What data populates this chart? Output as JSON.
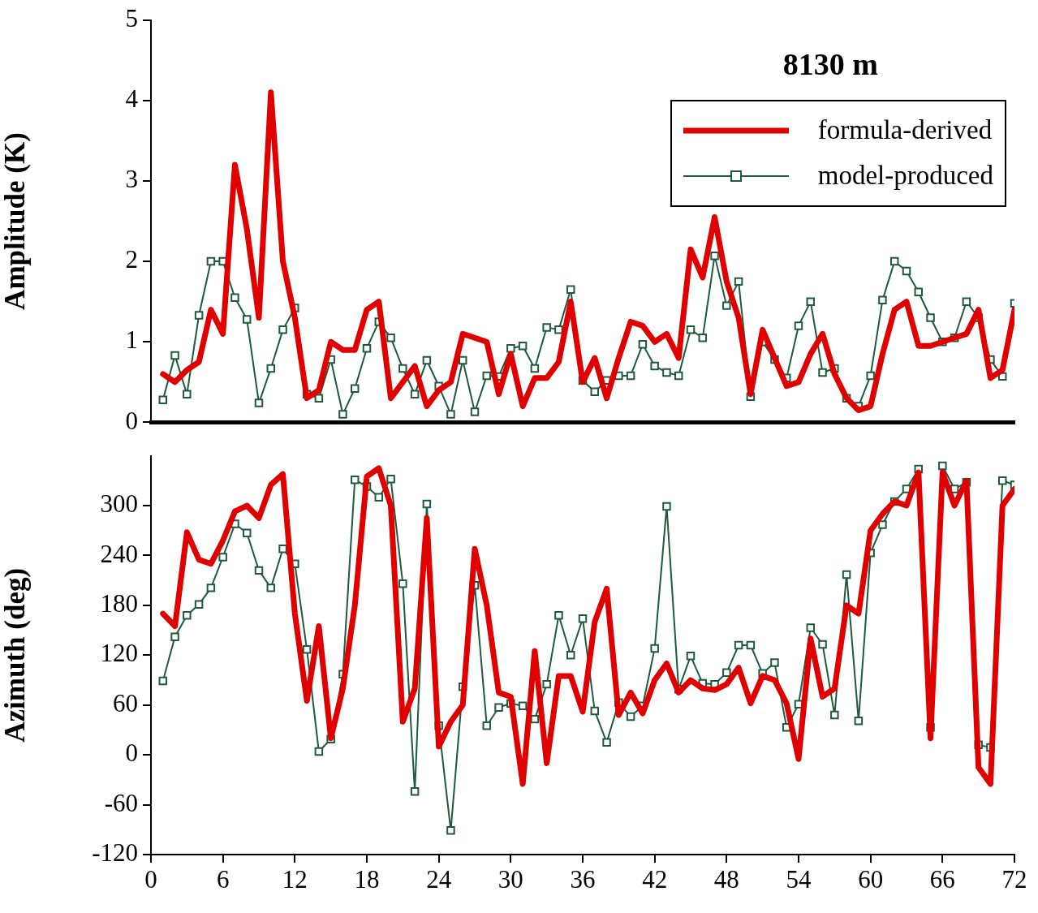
{
  "chart_data": [
    {
      "type": "line",
      "title": "8130 m",
      "ylabel": "Amplitude (K)",
      "xlim": [
        0,
        72
      ],
      "ylim": [
        0,
        5
      ],
      "yticks": [
        0,
        1,
        2,
        3,
        4,
        5
      ],
      "tick_labels": "y",
      "legend": "top right",
      "x": [
        1,
        2,
        3,
        4,
        5,
        6,
        7,
        8,
        9,
        10,
        11,
        12,
        13,
        14,
        15,
        16,
        17,
        18,
        19,
        20,
        21,
        22,
        23,
        24,
        25,
        26,
        27,
        28,
        29,
        30,
        31,
        32,
        33,
        34,
        35,
        36,
        37,
        38,
        39,
        40,
        41,
        42,
        43,
        44,
        45,
        46,
        47,
        48,
        49,
        50,
        51,
        52,
        53,
        54,
        55,
        56,
        57,
        58,
        59,
        60,
        61,
        62,
        63,
        64,
        65,
        66,
        67,
        68,
        69,
        70,
        71,
        72
      ],
      "series": [
        {
          "name": "formula-derived",
          "color": "#e00000",
          "marker": "none",
          "values": [
            0.6,
            0.5,
            0.65,
            0.75,
            1.4,
            1.1,
            3.2,
            2.4,
            1.3,
            4.1,
            2.0,
            1.3,
            0.3,
            0.4,
            1.0,
            0.9,
            0.9,
            1.4,
            1.5,
            0.3,
            0.5,
            0.7,
            0.2,
            0.4,
            0.5,
            1.1,
            1.05,
            1.0,
            0.35,
            0.85,
            0.2,
            0.55,
            0.55,
            0.75,
            1.5,
            0.5,
            0.8,
            0.3,
            0.8,
            1.25,
            1.2,
            1.0,
            1.1,
            0.8,
            2.15,
            1.8,
            2.55,
            1.75,
            1.3,
            0.35,
            1.15,
            0.8,
            0.45,
            0.5,
            0.85,
            1.1,
            0.6,
            0.3,
            0.15,
            0.2,
            0.85,
            1.4,
            1.5,
            0.95,
            0.95,
            1.0,
            1.05,
            1.1,
            1.4,
            0.55,
            0.65,
            1.4
          ]
        },
        {
          "name": "model-produced",
          "color": "#1e5a3c",
          "marker": "square",
          "values": [
            0.28,
            0.83,
            0.35,
            1.33,
            2.0,
            2.0,
            1.55,
            1.28,
            0.24,
            0.67,
            1.15,
            1.42,
            0.35,
            0.3,
            0.78,
            0.1,
            0.42,
            0.92,
            1.25,
            1.05,
            0.67,
            0.35,
            0.77,
            0.45,
            0.1,
            0.77,
            0.13,
            0.58,
            0.57,
            0.92,
            0.95,
            0.67,
            1.18,
            1.15,
            1.65,
            0.52,
            0.38,
            0.52,
            0.58,
            0.58,
            0.97,
            0.7,
            0.62,
            0.58,
            1.15,
            1.05,
            2.07,
            1.45,
            1.75,
            0.32,
            1.0,
            0.78,
            0.55,
            1.2,
            1.5,
            0.62,
            0.67,
            0.3,
            0.2,
            0.58,
            1.52,
            2.0,
            1.88,
            1.62,
            1.3,
            1.0,
            1.05,
            1.5,
            1.3,
            0.78,
            0.57,
            1.48
          ]
        }
      ]
    },
    {
      "type": "line",
      "ylabel": "Azimuth (deg)",
      "xlim": [
        0,
        72
      ],
      "xticks": [
        0,
        6,
        12,
        18,
        24,
        30,
        36,
        42,
        48,
        54,
        60,
        66,
        72
      ],
      "ylim": [
        -120,
        360
      ],
      "yticks": [
        -120,
        -60,
        0,
        60,
        120,
        180,
        240,
        300
      ],
      "x": [
        1,
        2,
        3,
        4,
        5,
        6,
        7,
        8,
        9,
        10,
        11,
        12,
        13,
        14,
        15,
        16,
        17,
        18,
        19,
        20,
        21,
        22,
        23,
        24,
        25,
        26,
        27,
        28,
        29,
        30,
        31,
        32,
        33,
        34,
        35,
        36,
        37,
        38,
        39,
        40,
        41,
        42,
        43,
        44,
        45,
        46,
        47,
        48,
        49,
        50,
        51,
        52,
        53,
        54,
        55,
        56,
        57,
        58,
        59,
        60,
        61,
        62,
        63,
        64,
        65,
        66,
        67,
        68,
        69,
        70,
        71,
        72
      ],
      "series": [
        {
          "color": "#e00000",
          "marker": "none",
          "values": [
            170,
            155,
            268,
            235,
            230,
            258,
            293,
            300,
            285,
            325,
            338,
            170,
            65,
            155,
            20,
            80,
            180,
            335,
            345,
            300,
            40,
            80,
            285,
            10,
            40,
            60,
            248,
            180,
            75,
            70,
            -35,
            125,
            -10,
            95,
            95,
            52,
            160,
            200,
            48,
            75,
            50,
            90,
            110,
            75,
            90,
            80,
            78,
            85,
            105,
            62,
            95,
            90,
            62,
            -5,
            140,
            70,
            80,
            180,
            170,
            270,
            290,
            305,
            300,
            340,
            20,
            340,
            300,
            330,
            -15,
            -35,
            300,
            320
          ]
        },
        {
          "color": "#1e5a3c",
          "marker": "square",
          "values": [
            89,
            142,
            168,
            181,
            201,
            238,
            278,
            267,
            222,
            201,
            248,
            230,
            127,
            4,
            19,
            97,
            331,
            323,
            310,
            332,
            206,
            -44,
            302,
            35,
            -91,
            82,
            204,
            35,
            57,
            62,
            59,
            43,
            85,
            168,
            120,
            164,
            53,
            15,
            63,
            46,
            59,
            128,
            299,
            79,
            119,
            86,
            85,
            99,
            132,
            132,
            98,
            111,
            33,
            61,
            153,
            133,
            48,
            217,
            41,
            243,
            277,
            305,
            320,
            344,
            33,
            348,
            320,
            328,
            12,
            9,
            330,
            325
          ]
        }
      ]
    }
  ]
}
